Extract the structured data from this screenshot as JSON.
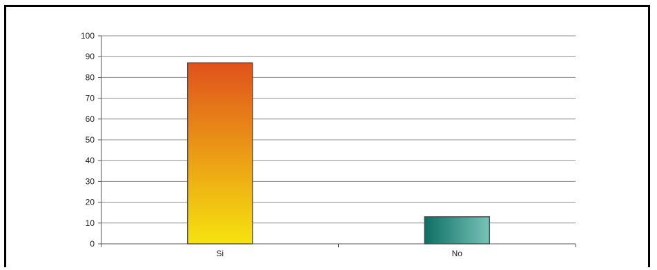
{
  "chart_data": {
    "type": "bar",
    "categories": [
      "Si",
      "No"
    ],
    "values": [
      87,
      13
    ],
    "ylim": [
      0,
      100
    ],
    "yticks": [
      0,
      10,
      20,
      30,
      40,
      50,
      60,
      70,
      80,
      90,
      100
    ],
    "grid": true,
    "legend": "none",
    "colors": {
      "Si": {
        "top": "#e0521c",
        "bottom": "#f5e30f"
      },
      "No": {
        "left": "#0e6e63",
        "right": "#78c3b8"
      }
    }
  }
}
